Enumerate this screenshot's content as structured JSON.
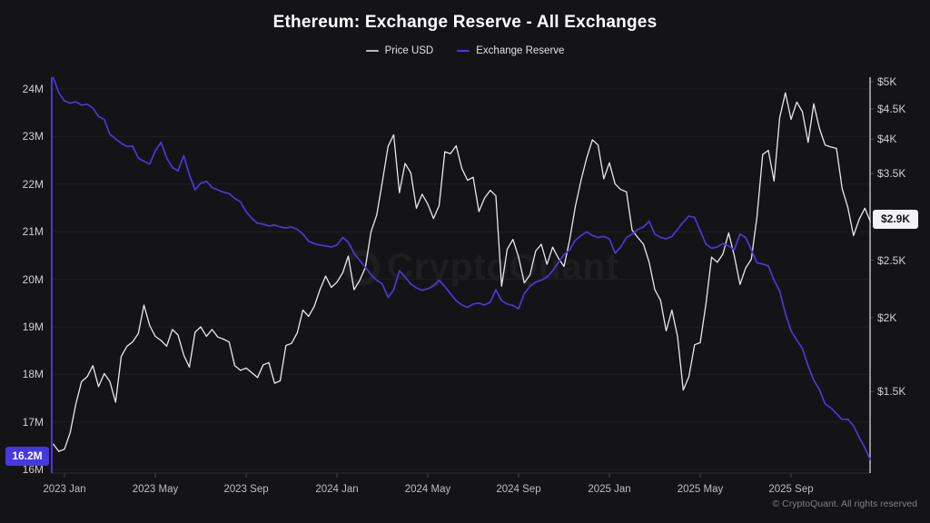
{
  "title": "Ethereum: Exchange Reserve - All Exchanges",
  "legend": [
    {
      "label": "Price USD",
      "color": "#b9b9bf"
    },
    {
      "label": "Exchange Reserve",
      "color": "#4b38d8"
    }
  ],
  "watermark": "CryptoQuant",
  "copyright": "© CryptoQuant. All rights reserved",
  "current": {
    "reserve": "16.2M",
    "price": "$2.9K"
  },
  "colors": {
    "accent": "#4b38d8",
    "price_line": "#e9e9ec",
    "grid": "#1e1e24",
    "tick_mark": "#45454c",
    "bottom_spine": "#2b2b31",
    "right_spine": "#e6e6e9",
    "badge_left_bg": "#4638e0",
    "badge_right_bg": "#f2f2f3"
  },
  "chart_data": {
    "type": "line",
    "title": "Ethereum: Exchange Reserve - All Exchanges",
    "x_months_since_jan_2023": {
      "start": -0.5,
      "step": 0.25
    },
    "x_tick_months": [
      0,
      4,
      8,
      12,
      16,
      20,
      24,
      28,
      32
    ],
    "x_tick_labels": [
      "2023 Jan",
      "2023 May",
      "2023 Sep",
      "2024 Jan",
      "2024 May",
      "2024 Sep",
      "2025 Jan",
      "2025 May",
      "2025 Sep"
    ],
    "left_axis": {
      "name": "Exchange Reserve",
      "scale": "linear",
      "unit": "ETH millions",
      "tick_values": [
        24,
        23,
        22,
        21,
        20,
        19,
        18,
        17,
        16
      ],
      "tick_labels": [
        "24M",
        "23M",
        "22M",
        "21M",
        "20M",
        "19M",
        "18M",
        "17M",
        "16M"
      ],
      "range": [
        16,
        24.3
      ],
      "current_value": 16.2
    },
    "right_axis": {
      "name": "Price USD",
      "scale": "log",
      "unit": "USD",
      "tick_values": [
        5000,
        4500,
        4000,
        3500,
        2500,
        2000,
        1500
      ],
      "tick_labels": [
        "$5K",
        "$4.5K",
        "$4K",
        "$3.5K",
        "$2.5K",
        "$2K",
        "$1.5K"
      ],
      "range": [
        1400,
        5100
      ],
      "current_value": 2900
    },
    "grid": "horizontal-only",
    "legend_position": "top-center",
    "series": [
      {
        "name": "Price USD",
        "axis": "right",
        "color": "#e9e9ec",
        "values": [
          1225,
          1190,
          1200,
          1280,
          1430,
          1560,
          1590,
          1660,
          1530,
          1610,
          1560,
          1440,
          1720,
          1790,
          1820,
          1880,
          2100,
          1940,
          1860,
          1830,
          1790,
          1910,
          1870,
          1730,
          1650,
          1890,
          1930,
          1860,
          1910,
          1855,
          1840,
          1820,
          1660,
          1630,
          1645,
          1615,
          1585,
          1665,
          1680,
          1550,
          1565,
          1795,
          1810,
          1885,
          2060,
          2010,
          2090,
          2230,
          2350,
          2250,
          2295,
          2380,
          2540,
          2230,
          2310,
          2430,
          2790,
          2980,
          3390,
          3890,
          4070,
          3250,
          3640,
          3510,
          3060,
          3230,
          3110,
          2940,
          3090,
          3810,
          3780,
          3900,
          3570,
          3410,
          3450,
          3020,
          3180,
          3280,
          3210,
          2260,
          2610,
          2710,
          2530,
          2290,
          2360,
          2590,
          2660,
          2460,
          2630,
          2520,
          2440,
          2710,
          3080,
          3410,
          3720,
          3990,
          3910,
          3430,
          3650,
          3360,
          3290,
          3260,
          2810,
          2730,
          2660,
          2480,
          2230,
          2140,
          1900,
          2060,
          1860,
          1510,
          1590,
          1800,
          1815,
          2110,
          2530,
          2480,
          2560,
          2780,
          2545,
          2275,
          2425,
          2510,
          2960,
          3770,
          3830,
          3400,
          4350,
          4790,
          4320,
          4620,
          4450,
          3950,
          4590,
          4170,
          3910,
          3880,
          3860,
          3300,
          3070,
          2750,
          2930,
          3060,
          2900
        ]
      },
      {
        "name": "Exchange Reserve",
        "axis": "left",
        "color": "#4b38d8",
        "values": [
          24.25,
          23.92,
          23.75,
          23.7,
          23.73,
          23.66,
          23.68,
          23.6,
          23.42,
          23.36,
          23.05,
          22.95,
          22.86,
          22.79,
          22.8,
          22.55,
          22.48,
          22.42,
          22.7,
          22.88,
          22.55,
          22.35,
          22.28,
          22.6,
          22.2,
          21.88,
          22.02,
          22.06,
          21.93,
          21.88,
          21.83,
          21.8,
          21.7,
          21.63,
          21.42,
          21.28,
          21.18,
          21.16,
          21.12,
          21.14,
          21.1,
          21.08,
          21.1,
          21.05,
          20.95,
          20.8,
          20.75,
          20.72,
          20.7,
          20.68,
          20.72,
          20.88,
          20.78,
          20.55,
          20.4,
          20.25,
          20.1,
          19.98,
          19.9,
          19.62,
          19.78,
          20.18,
          20.05,
          19.9,
          19.82,
          19.77,
          19.8,
          19.86,
          19.98,
          19.85,
          19.7,
          19.55,
          19.46,
          19.41,
          19.48,
          19.5,
          19.46,
          19.52,
          19.78,
          19.55,
          19.48,
          19.45,
          19.38,
          19.7,
          19.85,
          19.94,
          19.98,
          20.05,
          20.18,
          20.35,
          20.52,
          20.62,
          20.82,
          20.92,
          21.0,
          20.92,
          20.88,
          20.9,
          20.85,
          20.55,
          20.68,
          20.88,
          20.95,
          21.05,
          21.1,
          21.22,
          20.95,
          20.88,
          20.85,
          20.9,
          21.05,
          21.2,
          21.33,
          21.3,
          21.02,
          20.74,
          20.65,
          20.68,
          20.75,
          20.7,
          20.62,
          20.95,
          20.88,
          20.62,
          20.35,
          20.32,
          20.28,
          19.98,
          19.75,
          19.28,
          18.92,
          18.72,
          18.55,
          18.18,
          17.88,
          17.68,
          17.38,
          17.3,
          17.18,
          17.05,
          17.06,
          16.92,
          16.68,
          16.46,
          16.2
        ]
      }
    ]
  }
}
